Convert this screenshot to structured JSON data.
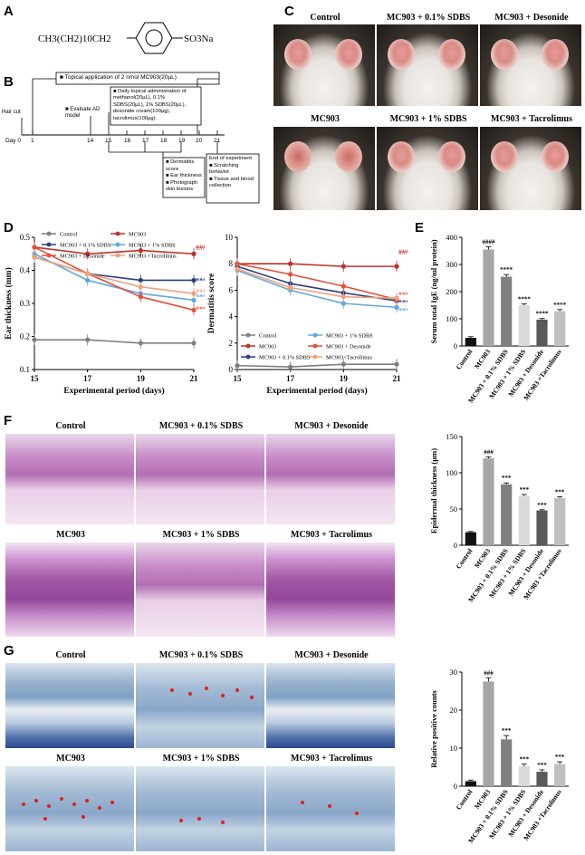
{
  "panelA": {
    "label": "A",
    "formula_left": "CH3(CH2)10CH2",
    "formula_right": "SO3Na"
  },
  "panelB": {
    "label": "B",
    "topical": "Topical application of 2 nmol MC903(20µL)",
    "haircut": "Hair cut",
    "evaluate": "Evaluate AD model",
    "daily": [
      "Daily topical administration of",
      "methanol(20µL), 0.1%",
      "SDBS(20µL), 1% SDBS(20µL),",
      "desonide cream(100µg),",
      "tacrolimus(100µg)."
    ],
    "days": [
      "Day 0",
      "1",
      "14",
      "15",
      "16",
      "17",
      "18",
      "19",
      "20",
      "21"
    ],
    "measures": [
      "Dermatitis score",
      "Ear thickness",
      "Photograph skin lesions"
    ],
    "end": [
      "End of experiment",
      "Scratching behavior",
      "Tissue and blood collection"
    ]
  },
  "panelC": {
    "label": "C",
    "titles": [
      "Control",
      "MC903 + 0.1% SDBS",
      "MC903 + Desonide",
      "MC903",
      "MC903 + 1% SDBS",
      "MC903 + Tacrolimus"
    ]
  },
  "panelD": {
    "label": "D"
  },
  "panelE": {
    "label": "E"
  },
  "panelF": {
    "label": "F",
    "titles": [
      "Control",
      "MC903 + 0.1% SDBS",
      "MC903 + Desonide",
      "MC903",
      "MC903 + 1% SDBS",
      "MC903 + Tacrolimus"
    ]
  },
  "panelG": {
    "label": "G",
    "titles": [
      "Control",
      "MC903 + 0.1% SDBS",
      "MC903 + Desonide",
      "MC903",
      "MC903 + 1% SDBS",
      "MC903 + Tacrolimus"
    ]
  },
  "chart_data": [
    {
      "id": "ear",
      "type": "line",
      "xlabel": "Experimental period (days)",
      "ylabel": "Ear thickness (mm)",
      "x": [
        15,
        17,
        19,
        21
      ],
      "ylim": [
        0.1,
        0.5
      ],
      "yticks": [
        "0.1",
        "0.2",
        "0.3",
        "0.4",
        "0.5"
      ],
      "xticks": [
        "15",
        "17",
        "19",
        "21"
      ],
      "legend": [
        "Control",
        "MC903",
        "MC903 + 0.1% SDBS",
        "MC903 + 1% SDBS",
        "MC903 + Desonide",
        "MC903 +Tacrolimus"
      ],
      "series": [
        {
          "name": "Control",
          "color": "#7f7f7f",
          "values": [
            0.19,
            0.19,
            0.18,
            0.18
          ]
        },
        {
          "name": "MC903",
          "color": "#c0302c",
          "values": [
            0.47,
            0.45,
            0.46,
            0.45
          ]
        },
        {
          "name": "MC903 + 0.1% SDBS",
          "color": "#2e3f7a",
          "values": [
            0.44,
            0.39,
            0.37,
            0.37
          ]
        },
        {
          "name": "MC903 + 1% SDBS",
          "color": "#5fa8db",
          "values": [
            0.45,
            0.37,
            0.33,
            0.31
          ]
        },
        {
          "name": "MC903 + Desonide",
          "color": "#e0503c",
          "values": [
            0.47,
            0.39,
            0.32,
            0.28
          ]
        },
        {
          "name": "MC903 +Tacrolimus",
          "color": "#f2a07a",
          "values": [
            0.44,
            0.39,
            0.35,
            0.33
          ]
        }
      ],
      "sig": [
        {
          "text": "###",
          "color": "#c0302c",
          "y": 0.47
        },
        {
          "text": "***",
          "color": "#f2a07a",
          "y": 0.335
        },
        {
          "text": "***",
          "color": "#2e3f7a",
          "y": 0.37
        },
        {
          "text": "***",
          "color": "#5fa8db",
          "y": 0.32
        },
        {
          "text": "***",
          "color": "#e0503c",
          "y": 0.283
        }
      ]
    },
    {
      "id": "derm",
      "type": "line",
      "xlabel": "Experimental period (days)",
      "ylabel": "Dermatitis score",
      "x": [
        15,
        17,
        19,
        21
      ],
      "ylim": [
        0,
        10
      ],
      "yticks": [
        "0",
        "2",
        "4",
        "6",
        "8",
        "10"
      ],
      "xticks": [
        "15",
        "17",
        "19",
        "21"
      ],
      "legend": [
        "Control",
        "MC903 + 1% SDBS",
        "MC903",
        "MC903 + Desonide",
        "MC903 + 0.1% SDBS",
        "MC903+Tacrolimus"
      ],
      "series": [
        {
          "name": "Control",
          "color": "#7f7f7f",
          "values": [
            0.3,
            0.2,
            0.4,
            0.4
          ]
        },
        {
          "name": "MC903",
          "color": "#c0302c",
          "values": [
            8.0,
            8.0,
            7.8,
            7.8
          ]
        },
        {
          "name": "MC903 + 0.1% SDBS",
          "color": "#2e3f7a",
          "values": [
            7.8,
            6.5,
            5.8,
            5.2
          ]
        },
        {
          "name": "MC903 + 1% SDBS",
          "color": "#5fa8db",
          "values": [
            7.5,
            6.0,
            5.0,
            4.7
          ]
        },
        {
          "name": "MC903 + Desonide",
          "color": "#e0503c",
          "values": [
            8.0,
            7.2,
            6.3,
            5.3
          ]
        },
        {
          "name": "MC903+Tacrolimus",
          "color": "#f2a07a",
          "values": [
            7.6,
            6.2,
            5.5,
            5.4
          ]
        }
      ],
      "sig": [
        {
          "text": "###",
          "color": "#c0302c",
          "y": 8.9
        },
        {
          "text": "***",
          "color": "#e0503c",
          "y": 5.7
        },
        {
          "text": "***",
          "color": "#2e3f7a",
          "y": 5.1
        },
        {
          "text": "***",
          "color": "#5fa8db",
          "y": 4.5
        }
      ]
    },
    {
      "id": "ige",
      "type": "bar",
      "ylabel": "Serum total IgE (ng/ml protein)",
      "ylim": [
        0,
        400
      ],
      "yticks": [
        "0",
        "100",
        "200",
        "300",
        "400"
      ],
      "categories": [
        "Control",
        "MC903",
        "MC903 + 0.1% SDBS",
        "MC903 + 1% SDBS",
        "MC903 + Desonide",
        "MC903 +Tacrolimus"
      ],
      "values": [
        30,
        355,
        255,
        150,
        97,
        128
      ],
      "errors": [
        4,
        10,
        8,
        5,
        4,
        6
      ],
      "colors": [
        "#111111",
        "#a6a6a6",
        "#808080",
        "#d9d9d9",
        "#595959",
        "#bfbfbf"
      ],
      "sig": [
        "",
        "####",
        "****",
        "****",
        "****",
        "****"
      ]
    },
    {
      "id": "epi",
      "type": "bar",
      "ylabel": "Epidermal thickness (µm)",
      "ylim": [
        0,
        150
      ],
      "yticks": [
        "0",
        "50",
        "100",
        "150"
      ],
      "categories": [
        "Control",
        "MC903",
        "MC903 + 0.1% SDBS",
        "MC903 + 1% SDBS",
        "MC903 + Desonide",
        "MC903 +Tacrolimus"
      ],
      "values": [
        18,
        120,
        84,
        68,
        48,
        65
      ],
      "errors": [
        1,
        2,
        2,
        2,
        1,
        2
      ],
      "colors": [
        "#111111",
        "#a6a6a6",
        "#808080",
        "#d9d9d9",
        "#595959",
        "#bfbfbf"
      ],
      "sig": [
        "",
        "###",
        "***",
        "***",
        "***",
        "***"
      ]
    },
    {
      "id": "mast",
      "type": "bar",
      "ylabel": "Relative positive counts",
      "ylim": [
        0,
        30
      ],
      "yticks": [
        "0",
        "10",
        "20",
        "30"
      ],
      "categories": [
        "Control",
        "MC903",
        "MC903 + 0.1% SDBS",
        "MC903 + 1% SDBS",
        "MC903 + Desonide",
        "MC903 +Tacrolimus"
      ],
      "values": [
        1.3,
        27.5,
        12.3,
        5.2,
        3.8,
        5.8
      ],
      "errors": [
        0.3,
        1.0,
        1.0,
        0.6,
        0.5,
        0.6
      ],
      "colors": [
        "#111111",
        "#a6a6a6",
        "#808080",
        "#d9d9d9",
        "#595959",
        "#bfbfbf"
      ],
      "sig": [
        "",
        "###",
        "***",
        "***",
        "***",
        "***"
      ]
    }
  ]
}
